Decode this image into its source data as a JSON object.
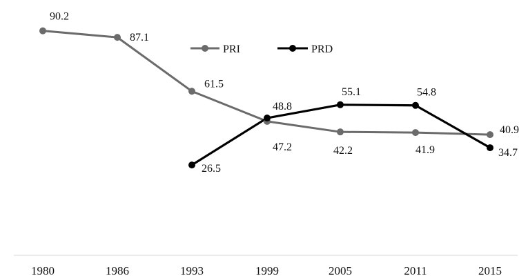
{
  "chart_data": {
    "type": "line",
    "title": "",
    "xlabel": "",
    "ylabel": "",
    "categories": [
      "1980",
      "1986",
      "1993",
      "1999",
      "2005",
      "2011",
      "2015"
    ],
    "ylim": [
      0,
      95
    ],
    "grid": false,
    "legend": {
      "placement": "top-center"
    },
    "series": [
      {
        "name": "PRI",
        "color": "#6b6b6b",
        "values": [
          90.2,
          87.1,
          61.5,
          47.2,
          42.2,
          41.9,
          40.9
        ]
      },
      {
        "name": "PRD",
        "color": "#000000",
        "values": [
          null,
          null,
          26.5,
          48.8,
          55.1,
          54.8,
          34.7
        ]
      }
    ]
  }
}
